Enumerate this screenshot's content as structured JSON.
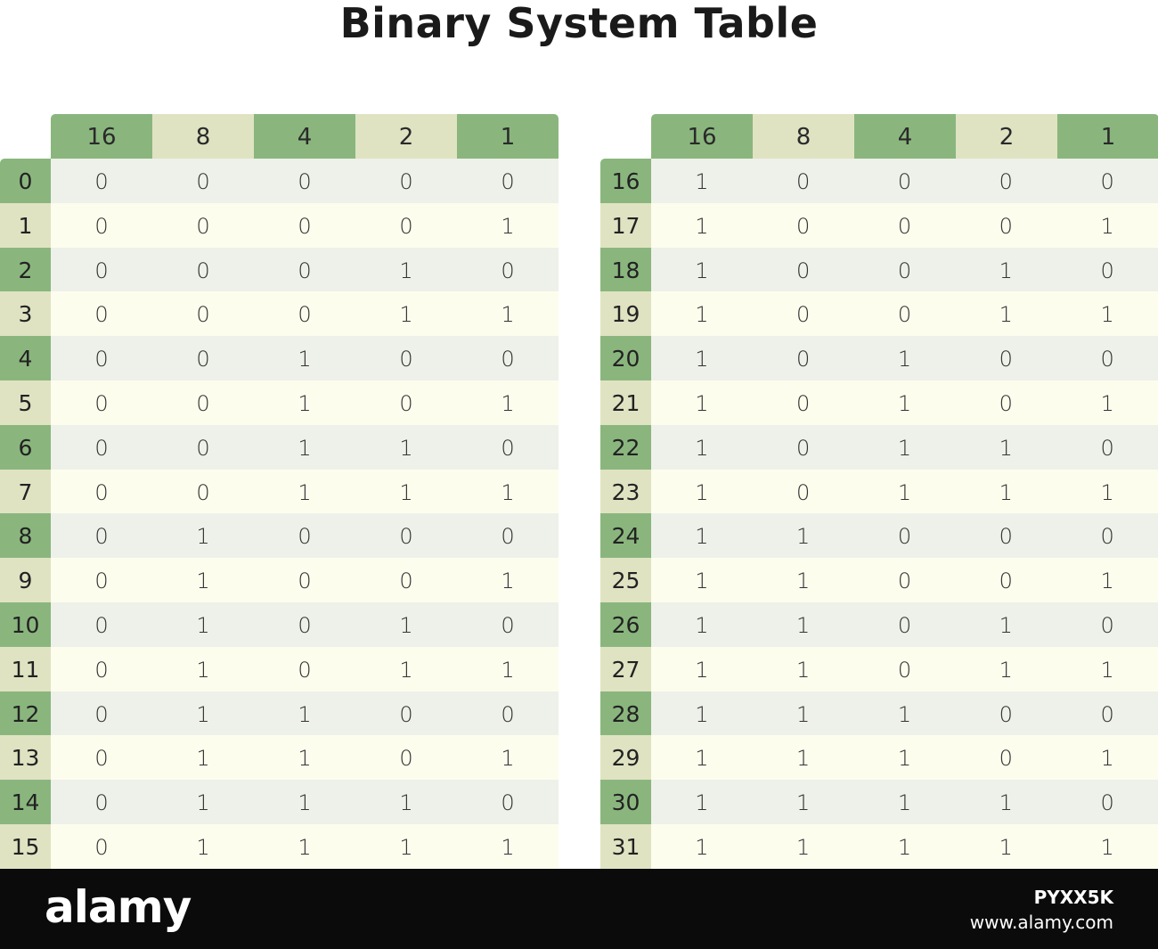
{
  "title": "Binary System Table",
  "colors": {
    "header_dark": "#8ab67e",
    "header_light": "#dfe3c2",
    "row_a": "#eef1e9",
    "row_b": "#fdfdee",
    "footer": "#0b0b0b"
  },
  "tables": [
    {
      "headers": [
        "16",
        "8",
        "4",
        "2",
        "1"
      ],
      "rows": [
        {
          "label": "0",
          "bits": [
            "0",
            "0",
            "0",
            "0",
            "0"
          ]
        },
        {
          "label": "1",
          "bits": [
            "0",
            "0",
            "0",
            "0",
            "1"
          ]
        },
        {
          "label": "2",
          "bits": [
            "0",
            "0",
            "0",
            "1",
            "0"
          ]
        },
        {
          "label": "3",
          "bits": [
            "0",
            "0",
            "0",
            "1",
            "1"
          ]
        },
        {
          "label": "4",
          "bits": [
            "0",
            "0",
            "1",
            "0",
            "0"
          ]
        },
        {
          "label": "5",
          "bits": [
            "0",
            "0",
            "1",
            "0",
            "1"
          ]
        },
        {
          "label": "6",
          "bits": [
            "0",
            "0",
            "1",
            "1",
            "0"
          ]
        },
        {
          "label": "7",
          "bits": [
            "0",
            "0",
            "1",
            "1",
            "1"
          ]
        },
        {
          "label": "8",
          "bits": [
            "0",
            "1",
            "0",
            "0",
            "0"
          ]
        },
        {
          "label": "9",
          "bits": [
            "0",
            "1",
            "0",
            "0",
            "1"
          ]
        },
        {
          "label": "10",
          "bits": [
            "0",
            "1",
            "0",
            "1",
            "0"
          ]
        },
        {
          "label": "11",
          "bits": [
            "0",
            "1",
            "0",
            "1",
            "1"
          ]
        },
        {
          "label": "12",
          "bits": [
            "0",
            "1",
            "1",
            "0",
            "0"
          ]
        },
        {
          "label": "13",
          "bits": [
            "0",
            "1",
            "1",
            "0",
            "1"
          ]
        },
        {
          "label": "14",
          "bits": [
            "0",
            "1",
            "1",
            "1",
            "0"
          ]
        },
        {
          "label": "15",
          "bits": [
            "0",
            "1",
            "1",
            "1",
            "1"
          ]
        }
      ]
    },
    {
      "headers": [
        "16",
        "8",
        "4",
        "2",
        "1"
      ],
      "rows": [
        {
          "label": "16",
          "bits": [
            "1",
            "0",
            "0",
            "0",
            "0"
          ]
        },
        {
          "label": "17",
          "bits": [
            "1",
            "0",
            "0",
            "0",
            "1"
          ]
        },
        {
          "label": "18",
          "bits": [
            "1",
            "0",
            "0",
            "1",
            "0"
          ]
        },
        {
          "label": "19",
          "bits": [
            "1",
            "0",
            "0",
            "1",
            "1"
          ]
        },
        {
          "label": "20",
          "bits": [
            "1",
            "0",
            "1",
            "0",
            "0"
          ]
        },
        {
          "label": "21",
          "bits": [
            "1",
            "0",
            "1",
            "0",
            "1"
          ]
        },
        {
          "label": "22",
          "bits": [
            "1",
            "0",
            "1",
            "1",
            "0"
          ]
        },
        {
          "label": "23",
          "bits": [
            "1",
            "0",
            "1",
            "1",
            "1"
          ]
        },
        {
          "label": "24",
          "bits": [
            "1",
            "1",
            "0",
            "0",
            "0"
          ]
        },
        {
          "label": "25",
          "bits": [
            "1",
            "1",
            "0",
            "0",
            "1"
          ]
        },
        {
          "label": "26",
          "bits": [
            "1",
            "1",
            "0",
            "1",
            "0"
          ]
        },
        {
          "label": "27",
          "bits": [
            "1",
            "1",
            "0",
            "1",
            "1"
          ]
        },
        {
          "label": "28",
          "bits": [
            "1",
            "1",
            "1",
            "0",
            "0"
          ]
        },
        {
          "label": "29",
          "bits": [
            "1",
            "1",
            "1",
            "0",
            "1"
          ]
        },
        {
          "label": "30",
          "bits": [
            "1",
            "1",
            "1",
            "1",
            "0"
          ]
        },
        {
          "label": "31",
          "bits": [
            "1",
            "1",
            "1",
            "1",
            "1"
          ]
        }
      ]
    }
  ],
  "footer": {
    "brand": "alamy",
    "image_id": "PYXX5K",
    "site": "www.alamy.com"
  }
}
